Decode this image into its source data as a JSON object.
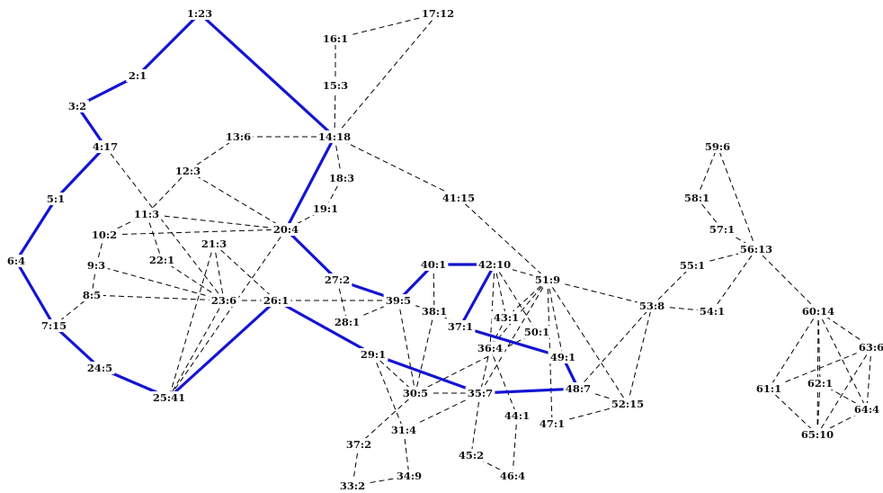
{
  "nodes": [
    {
      "id": "n1",
      "label": "1:23"
    },
    {
      "id": "n2",
      "label": "2:1"
    },
    {
      "id": "n3",
      "label": "3:2"
    },
    {
      "id": "n4",
      "label": "4:17"
    },
    {
      "id": "n5",
      "label": "5:1"
    },
    {
      "id": "n6",
      "label": "6:4"
    },
    {
      "id": "n7",
      "label": "7:15"
    },
    {
      "id": "n8",
      "label": "8:5"
    },
    {
      "id": "n9",
      "label": "9:3"
    },
    {
      "id": "n10",
      "label": "10:2"
    },
    {
      "id": "n11",
      "label": "11:3"
    },
    {
      "id": "n12",
      "label": "12:3"
    },
    {
      "id": "n13",
      "label": "13:6"
    },
    {
      "id": "n14",
      "label": "14:18"
    },
    {
      "id": "n15",
      "label": "15:3"
    },
    {
      "id": "n16",
      "label": "16:1"
    },
    {
      "id": "n17",
      "label": "17:12"
    },
    {
      "id": "n18",
      "label": "18:3"
    },
    {
      "id": "n19",
      "label": "19:1"
    },
    {
      "id": "n20",
      "label": "20:4"
    },
    {
      "id": "n21",
      "label": "21:3"
    },
    {
      "id": "n22",
      "label": "22:1"
    },
    {
      "id": "n23",
      "label": "23:6"
    },
    {
      "id": "n24",
      "label": "24:5"
    },
    {
      "id": "n25",
      "label": "25:41"
    },
    {
      "id": "n26",
      "label": "26:1"
    },
    {
      "id": "n27",
      "label": "27:2"
    },
    {
      "id": "n28",
      "label": "28:1"
    },
    {
      "id": "n29",
      "label": "29:1"
    },
    {
      "id": "n30",
      "label": "30:5"
    },
    {
      "id": "n31",
      "label": "31:4"
    },
    {
      "id": "n33",
      "label": "33:2"
    },
    {
      "id": "n34",
      "label": "34:9"
    },
    {
      "id": "n35",
      "label": "35:7"
    },
    {
      "id": "n36",
      "label": "36:4"
    },
    {
      "id": "n37",
      "label": "37:1"
    },
    {
      "id": "n37b",
      "label": "37:2"
    },
    {
      "id": "n38",
      "label": "38:1"
    },
    {
      "id": "n39",
      "label": "39:5"
    },
    {
      "id": "n40",
      "label": "40:1"
    },
    {
      "id": "n41",
      "label": "41:15"
    },
    {
      "id": "n42",
      "label": "42:10"
    },
    {
      "id": "n43",
      "label": "43:1"
    },
    {
      "id": "n44",
      "label": "44:1"
    },
    {
      "id": "n45",
      "label": "45:2"
    },
    {
      "id": "n46",
      "label": "46:4"
    },
    {
      "id": "n47",
      "label": "47:1"
    },
    {
      "id": "n48",
      "label": "48:7"
    },
    {
      "id": "n49",
      "label": "49:1"
    },
    {
      "id": "n50",
      "label": "50:1"
    },
    {
      "id": "n51",
      "label": "51:9"
    },
    {
      "id": "n52",
      "label": "52:15"
    },
    {
      "id": "n53",
      "label": "53:8"
    },
    {
      "id": "n54",
      "label": "54:1"
    },
    {
      "id": "n55",
      "label": "55:1"
    },
    {
      "id": "n56",
      "label": "56:13"
    },
    {
      "id": "n57",
      "label": "57:1"
    },
    {
      "id": "n58",
      "label": "58:1"
    },
    {
      "id": "n59",
      "label": "59:6"
    },
    {
      "id": "n60",
      "label": "60:14"
    },
    {
      "id": "n61",
      "label": "61:1"
    },
    {
      "id": "n62",
      "label": "62:1"
    },
    {
      "id": "n63",
      "label": "63:6"
    },
    {
      "id": "n64",
      "label": "64:4"
    },
    {
      "id": "n65",
      "label": "65:10"
    }
  ],
  "edges": [
    {
      "from": "n1",
      "to": "n2",
      "style": "bold"
    },
    {
      "from": "n2",
      "to": "n3",
      "style": "bold"
    },
    {
      "from": "n3",
      "to": "n4",
      "style": "bold"
    },
    {
      "from": "n4",
      "to": "n5",
      "style": "bold"
    },
    {
      "from": "n5",
      "to": "n6",
      "style": "bold"
    },
    {
      "from": "n6",
      "to": "n7",
      "style": "bold"
    },
    {
      "from": "n7",
      "to": "n24",
      "style": "bold"
    },
    {
      "from": "n24",
      "to": "n25",
      "style": "bold"
    },
    {
      "from": "n25",
      "to": "n26",
      "style": "bold"
    },
    {
      "from": "n26",
      "to": "n29",
      "style": "bold"
    },
    {
      "from": "n29",
      "to": "n35",
      "style": "bold"
    },
    {
      "from": "n35",
      "to": "n48",
      "style": "bold"
    },
    {
      "from": "n1",
      "to": "n14",
      "style": "bold"
    },
    {
      "from": "n14",
      "to": "n20",
      "style": "bold"
    },
    {
      "from": "n20",
      "to": "n27",
      "style": "bold"
    },
    {
      "from": "n27",
      "to": "n39",
      "style": "bold"
    },
    {
      "from": "n39",
      "to": "n40",
      "style": "bold"
    },
    {
      "from": "n40",
      "to": "n42",
      "style": "bold"
    },
    {
      "from": "n42",
      "to": "n37",
      "style": "bold"
    },
    {
      "from": "n37",
      "to": "n49",
      "style": "bold"
    },
    {
      "from": "n49",
      "to": "n48",
      "style": "bold"
    },
    {
      "from": "n14",
      "to": "n15",
      "style": "dashed"
    },
    {
      "from": "n15",
      "to": "n16",
      "style": "dashed"
    },
    {
      "from": "n16",
      "to": "n17",
      "style": "dashed"
    },
    {
      "from": "n17",
      "to": "n14",
      "style": "dashed"
    },
    {
      "from": "n14",
      "to": "n13",
      "style": "dashed"
    },
    {
      "from": "n13",
      "to": "n12",
      "style": "dashed"
    },
    {
      "from": "n12",
      "to": "n11",
      "style": "dashed"
    },
    {
      "from": "n12",
      "to": "n20",
      "style": "dashed"
    },
    {
      "from": "n14",
      "to": "n18",
      "style": "dashed"
    },
    {
      "from": "n18",
      "to": "n19",
      "style": "dashed"
    },
    {
      "from": "n19",
      "to": "n20",
      "style": "dashed"
    },
    {
      "from": "n14",
      "to": "n41",
      "style": "dashed"
    },
    {
      "from": "n41",
      "to": "n51",
      "style": "dashed"
    },
    {
      "from": "n4",
      "to": "n23",
      "style": "dashed"
    },
    {
      "from": "n11",
      "to": "n20",
      "style": "dashed"
    },
    {
      "from": "n11",
      "to": "n10",
      "style": "dashed"
    },
    {
      "from": "n11",
      "to": "n22",
      "style": "dashed"
    },
    {
      "from": "n10",
      "to": "n9",
      "style": "dashed"
    },
    {
      "from": "n10",
      "to": "n20",
      "style": "dashed"
    },
    {
      "from": "n9",
      "to": "n8",
      "style": "dashed"
    },
    {
      "from": "n9",
      "to": "n23",
      "style": "dashed"
    },
    {
      "from": "n8",
      "to": "n7",
      "style": "dashed"
    },
    {
      "from": "n8",
      "to": "n23",
      "style": "dashed"
    },
    {
      "from": "n22",
      "to": "n23",
      "style": "dashed"
    },
    {
      "from": "n21",
      "to": "n23",
      "style": "dashed"
    },
    {
      "from": "n21",
      "to": "n25",
      "style": "dashed"
    },
    {
      "from": "n21",
      "to": "n26",
      "style": "dashed"
    },
    {
      "from": "n23",
      "to": "n25",
      "style": "dashed"
    },
    {
      "from": "n20",
      "to": "n25",
      "style": "dashed"
    },
    {
      "from": "n23",
      "to": "n39",
      "style": "dashed"
    },
    {
      "from": "n27",
      "to": "n28",
      "style": "dashed"
    },
    {
      "from": "n28",
      "to": "n39",
      "style": "dashed"
    },
    {
      "from": "n39",
      "to": "n30",
      "style": "dashed"
    },
    {
      "from": "n39",
      "to": "n38",
      "style": "dashed"
    },
    {
      "from": "n40",
      "to": "n38",
      "style": "dashed"
    },
    {
      "from": "n38",
      "to": "n30",
      "style": "dashed"
    },
    {
      "from": "n38",
      "to": "n37",
      "style": "dashed"
    },
    {
      "from": "n42",
      "to": "n51",
      "style": "dashed"
    },
    {
      "from": "n42",
      "to": "n43",
      "style": "dashed"
    },
    {
      "from": "n42",
      "to": "n50",
      "style": "dashed"
    },
    {
      "from": "n42",
      "to": "n36",
      "style": "dashed"
    },
    {
      "from": "n51",
      "to": "n43",
      "style": "dashed"
    },
    {
      "from": "n51",
      "to": "n36",
      "style": "dashed"
    },
    {
      "from": "n51",
      "to": "n35",
      "style": "dashed"
    },
    {
      "from": "n51",
      "to": "n49",
      "style": "dashed"
    },
    {
      "from": "n51",
      "to": "n47",
      "style": "dashed"
    },
    {
      "from": "n51",
      "to": "n52",
      "style": "dashed"
    },
    {
      "from": "n51",
      "to": "n53",
      "style": "dashed"
    },
    {
      "from": "n50",
      "to": "n30",
      "style": "dashed"
    },
    {
      "from": "n36",
      "to": "n35",
      "style": "dashed"
    },
    {
      "from": "n36",
      "to": "n44",
      "style": "dashed"
    },
    {
      "from": "n43",
      "to": "n36",
      "style": "dashed"
    },
    {
      "from": "n29",
      "to": "n30",
      "style": "dashed"
    },
    {
      "from": "n29",
      "to": "n31",
      "style": "dashed"
    },
    {
      "from": "n30",
      "to": "n35",
      "style": "dashed"
    },
    {
      "from": "n30",
      "to": "n37b",
      "style": "dashed"
    },
    {
      "from": "n31",
      "to": "n34",
      "style": "dashed"
    },
    {
      "from": "n31",
      "to": "n35",
      "style": "dashed"
    },
    {
      "from": "n37b",
      "to": "n33",
      "style": "dashed"
    },
    {
      "from": "n33",
      "to": "n34",
      "style": "dashed"
    },
    {
      "from": "n35",
      "to": "n45",
      "style": "dashed"
    },
    {
      "from": "n45",
      "to": "n46",
      "style": "dashed"
    },
    {
      "from": "n44",
      "to": "n46",
      "style": "dashed"
    },
    {
      "from": "n48",
      "to": "n52",
      "style": "dashed"
    },
    {
      "from": "n48",
      "to": "n53",
      "style": "dashed"
    },
    {
      "from": "n47",
      "to": "n52",
      "style": "dashed"
    },
    {
      "from": "n52",
      "to": "n53",
      "style": "dashed"
    },
    {
      "from": "n53",
      "to": "n54",
      "style": "dashed"
    },
    {
      "from": "n53",
      "to": "n55",
      "style": "dashed"
    },
    {
      "from": "n55",
      "to": "n56",
      "style": "dashed"
    },
    {
      "from": "n54",
      "to": "n56",
      "style": "dashed"
    },
    {
      "from": "n56",
      "to": "n57",
      "style": "dashed"
    },
    {
      "from": "n57",
      "to": "n58",
      "style": "dashed"
    },
    {
      "from": "n58",
      "to": "n59",
      "style": "dashed"
    },
    {
      "from": "n56",
      "to": "n59",
      "style": "dashed"
    },
    {
      "from": "n56",
      "to": "n60",
      "style": "dashed"
    },
    {
      "from": "n60",
      "to": "n61",
      "style": "dashed"
    },
    {
      "from": "n60",
      "to": "n62",
      "style": "dashed"
    },
    {
      "from": "n60",
      "to": "n63",
      "style": "dashed"
    },
    {
      "from": "n60",
      "to": "n64",
      "style": "dashed"
    },
    {
      "from": "n60",
      "to": "n65",
      "style": "dashed"
    },
    {
      "from": "n61",
      "to": "n63",
      "style": "dashed"
    },
    {
      "from": "n61",
      "to": "n65",
      "style": "dashed"
    },
    {
      "from": "n62",
      "to": "n64",
      "style": "dashed"
    },
    {
      "from": "n63",
      "to": "n64",
      "style": "dashed"
    },
    {
      "from": "n63",
      "to": "n65",
      "style": "dashed"
    },
    {
      "from": "n64",
      "to": "n65",
      "style": "dashed"
    },
    {
      "from": "n62",
      "to": "n65",
      "style": "dashed"
    }
  ],
  "colors": {
    "bold_edge": "#1414d2",
    "dashed_edge": "#000000",
    "label": "#111111",
    "background": "#ffffff"
  }
}
